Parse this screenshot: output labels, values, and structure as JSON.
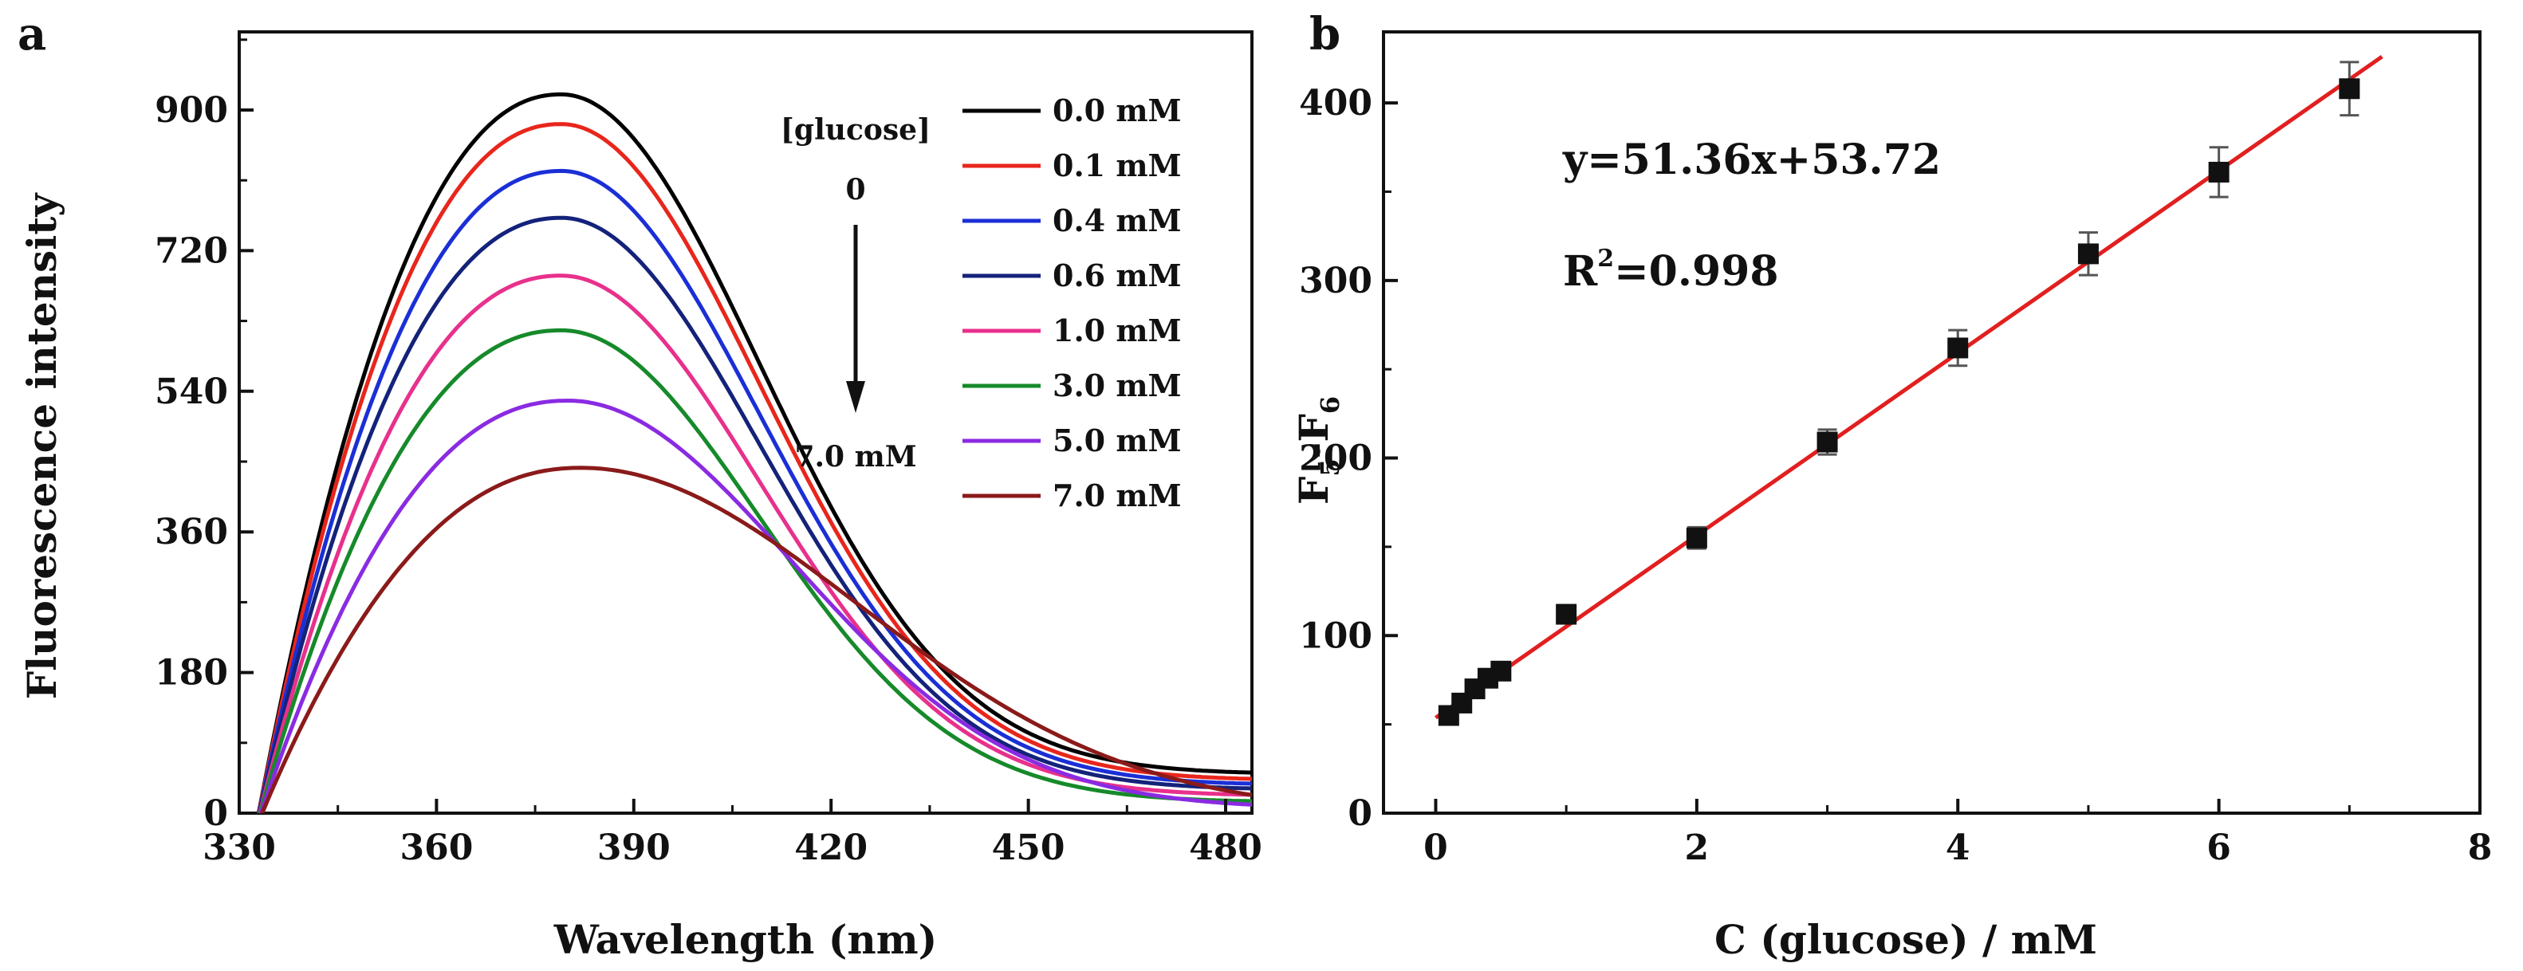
{
  "chart_data": [
    {
      "panel": "a",
      "type": "line",
      "xlabel": "Wavelength (nm)",
      "ylabel": "Fluorescence intensity",
      "xlim": [
        330,
        484
      ],
      "ylim": [
        0,
        1000
      ],
      "xticks": [
        330,
        360,
        390,
        420,
        450,
        480
      ],
      "yticks": [
        0,
        180,
        360,
        540,
        720,
        900
      ],
      "annotation": {
        "top": "[glucose]",
        "start": "0",
        "end": "7.0 mM"
      },
      "series": [
        {
          "name": "0.0 mM",
          "color": "#000000",
          "peak": 920,
          "peak_x": 379,
          "tail": 50
        },
        {
          "name": "0.1 mM",
          "color": "#e8261c",
          "peak": 882,
          "peak_x": 379,
          "tail": 42
        },
        {
          "name": "0.4 mM",
          "color": "#1b2fd6",
          "peak": 822,
          "peak_x": 379,
          "tail": 36
        },
        {
          "name": "0.6 mM",
          "color": "#14227a",
          "peak": 762,
          "peak_x": 379,
          "tail": 30
        },
        {
          "name": "1.0 mM",
          "color": "#e8308c",
          "peak": 688,
          "peak_x": 379,
          "tail": 22
        },
        {
          "name": "3.0 mM",
          "color": "#168a2a",
          "peak": 618,
          "peak_x": 379,
          "tail": 14
        },
        {
          "name": "5.0 mM",
          "color": "#8a2be2",
          "peak": 528,
          "peak_x": 380,
          "tail": 6
        },
        {
          "name": "7.0 mM",
          "color": "#8b1a1a",
          "peak": 442,
          "peak_x": 382,
          "tail": 0
        }
      ]
    },
    {
      "panel": "b",
      "type": "scatter",
      "xlabel": "C (glucose) / mM",
      "ylabel": "F5-F6",
      "xlim": [
        -0.4,
        8
      ],
      "ylim": [
        0,
        440
      ],
      "xticks": [
        0,
        2,
        4,
        6,
        8
      ],
      "yticks": [
        0,
        100,
        200,
        300,
        400
      ],
      "equation": "y=51.36x+53.72",
      "r_squared": "R2=0.998",
      "fit": {
        "slope": 51.36,
        "intercept": 53.72,
        "x_range": [
          0,
          7.25
        ],
        "color": "#e21f1f"
      },
      "points": [
        {
          "x": 0.1,
          "y": 55,
          "err": 4
        },
        {
          "x": 0.2,
          "y": 62,
          "err": 4
        },
        {
          "x": 0.3,
          "y": 70,
          "err": 4
        },
        {
          "x": 0.4,
          "y": 76,
          "err": 4
        },
        {
          "x": 0.5,
          "y": 80,
          "err": 4
        },
        {
          "x": 1.0,
          "y": 112,
          "err": 5
        },
        {
          "x": 2.0,
          "y": 155,
          "err": 6
        },
        {
          "x": 3.0,
          "y": 209,
          "err": 7
        },
        {
          "x": 4.0,
          "y": 262,
          "err": 10
        },
        {
          "x": 5.0,
          "y": 315,
          "err": 12
        },
        {
          "x": 6.0,
          "y": 361,
          "err": 14
        },
        {
          "x": 7.0,
          "y": 408,
          "err": 15
        }
      ]
    }
  ]
}
